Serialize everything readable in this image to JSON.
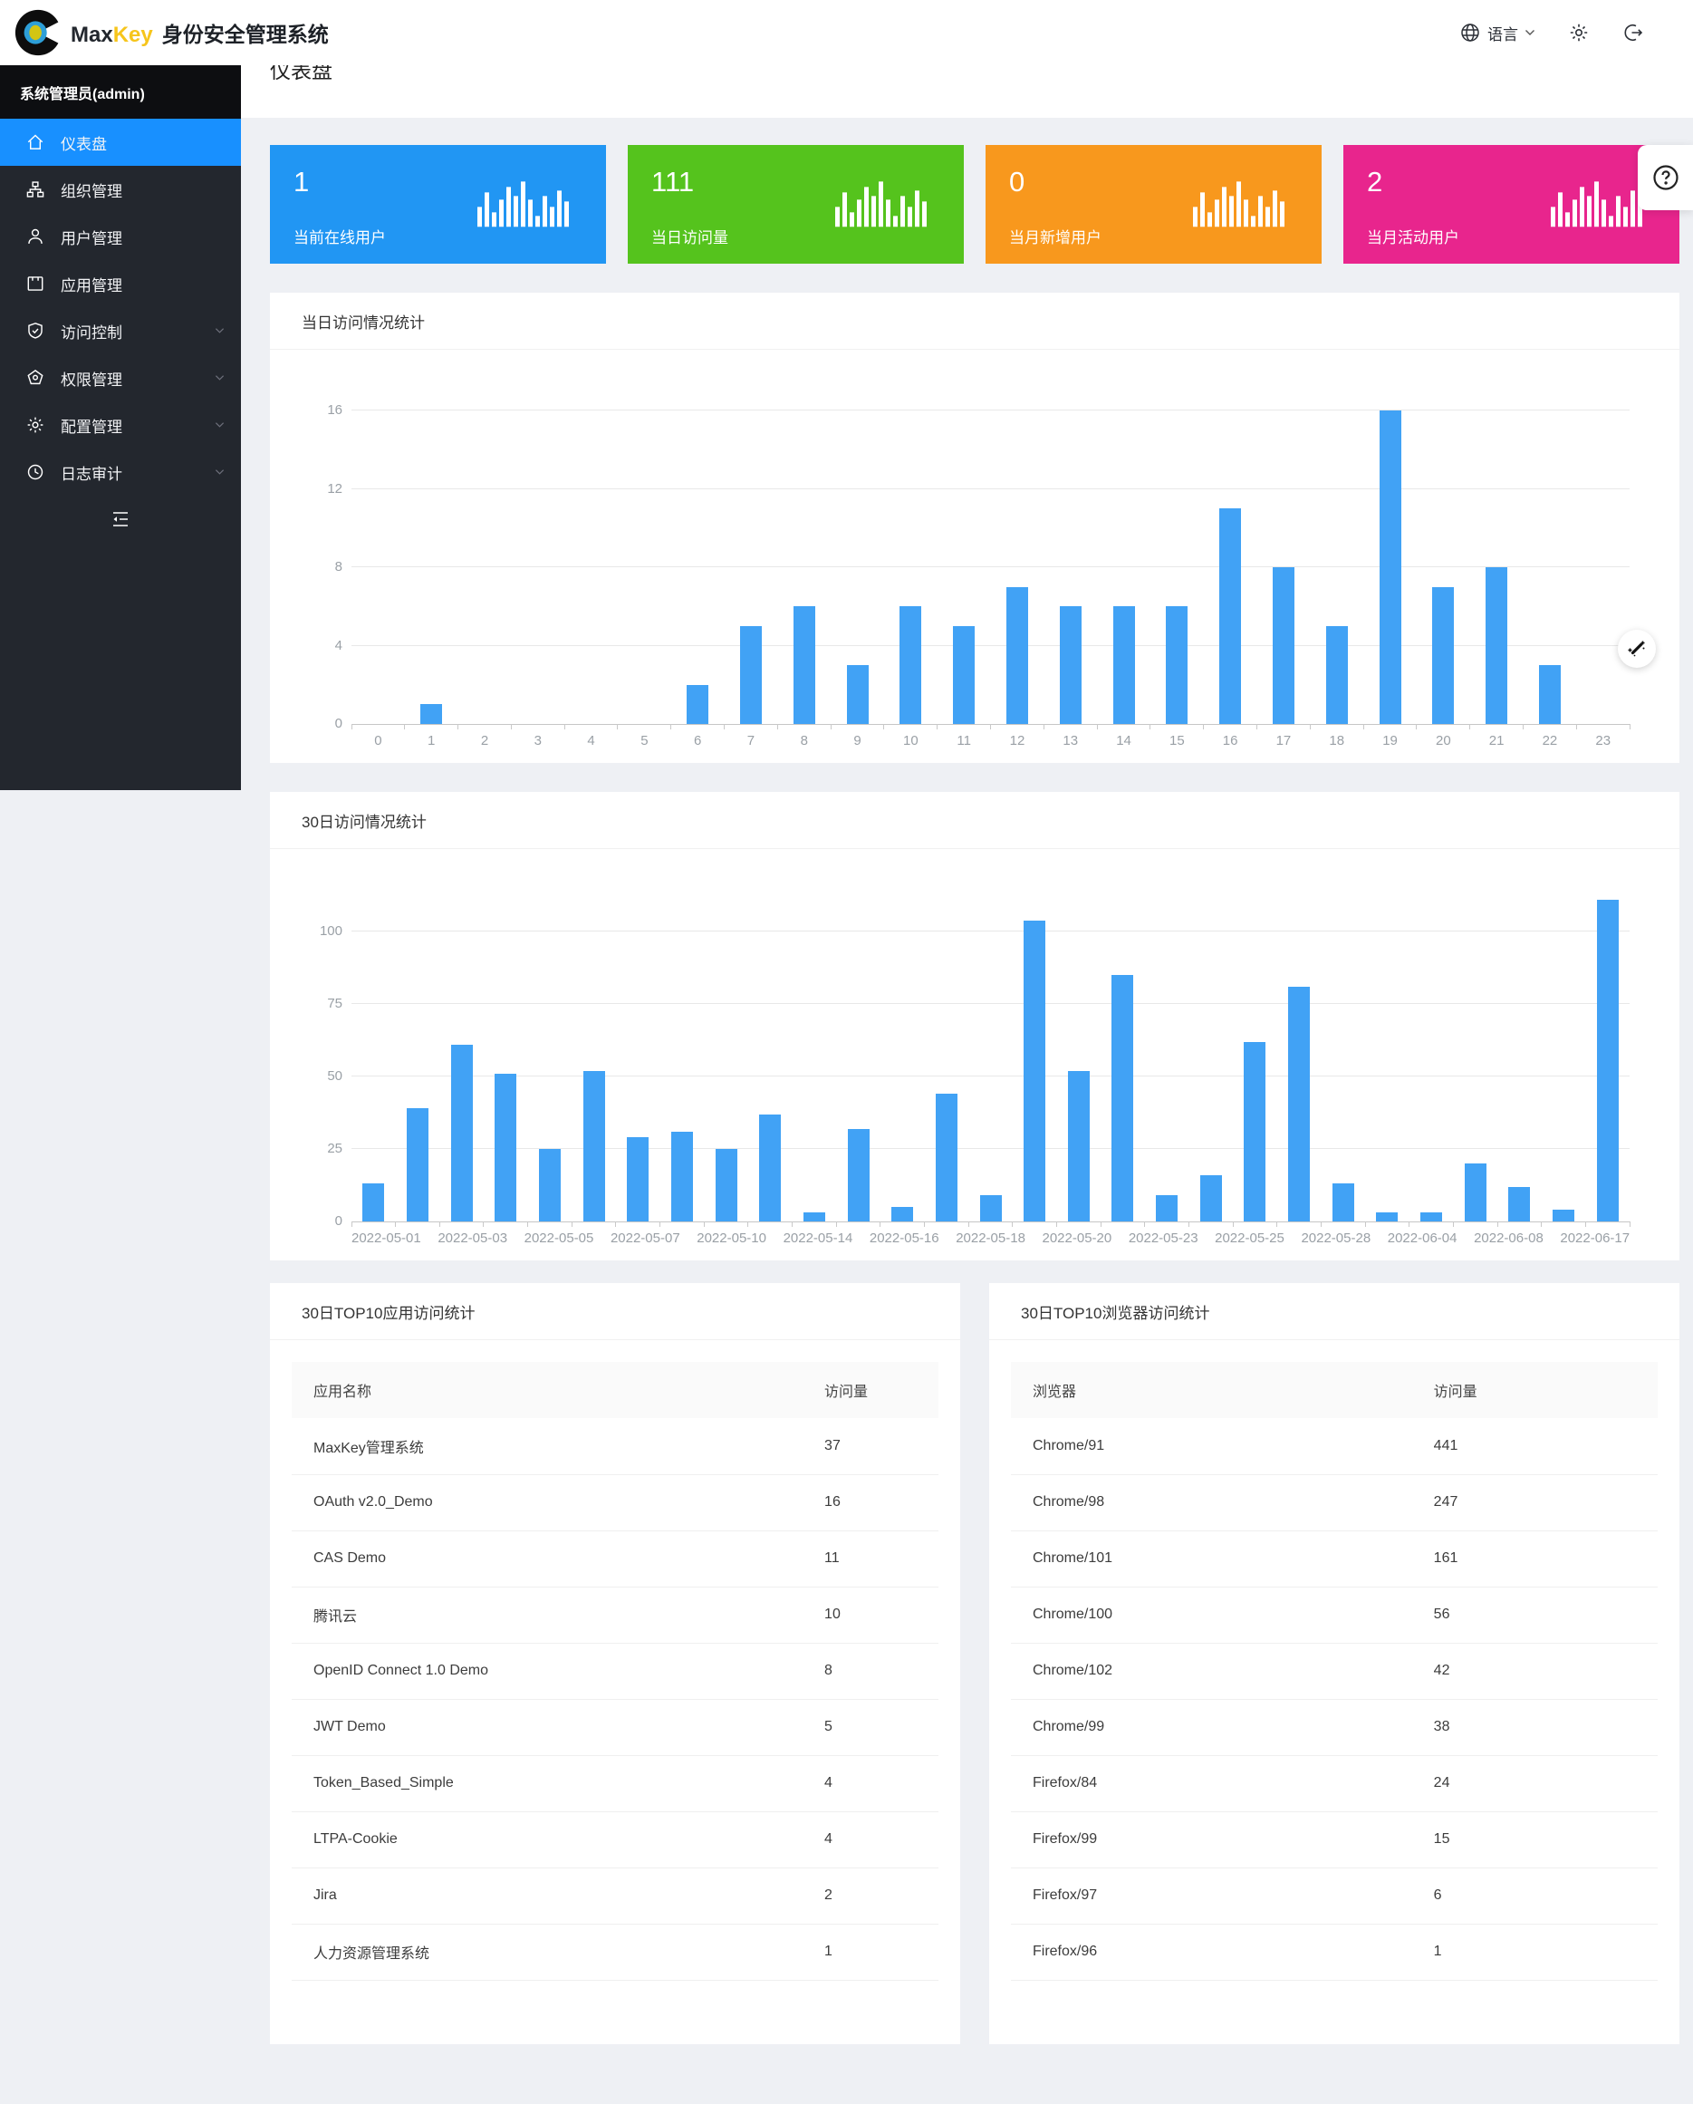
{
  "topbar": {
    "brand": {
      "max": "Max",
      "key": "Key",
      "suffix": "身份安全管理系统"
    },
    "language_label": "语言"
  },
  "sidebar": {
    "user_title": "系统管理员(admin)",
    "items": [
      {
        "label": "仪表盘"
      },
      {
        "label": "组织管理"
      },
      {
        "label": "用户管理"
      },
      {
        "label": "应用管理"
      },
      {
        "label": "访问控制"
      },
      {
        "label": "权限管理"
      },
      {
        "label": "配置管理"
      },
      {
        "label": "日志审计"
      }
    ]
  },
  "breadcrumb": {
    "home": "home",
    "separator": "/",
    "current": "仪表盘"
  },
  "page": {
    "title": "仪表盘"
  },
  "stat_cards": [
    {
      "value": "1",
      "label": "当前在线用户",
      "color": "#2196f3"
    },
    {
      "value": "111",
      "label": "当日访问量",
      "color": "#55c31d"
    },
    {
      "value": "0",
      "label": "当月新增用户",
      "color": "#f8981d"
    },
    {
      "value": "2",
      "label": "当月活动用户",
      "color": "#e8258d"
    }
  ],
  "chart_data": [
    {
      "type": "bar",
      "title": "当日访问情况统计",
      "categories": [
        "0",
        "1",
        "2",
        "3",
        "4",
        "5",
        "6",
        "7",
        "8",
        "9",
        "10",
        "11",
        "12",
        "13",
        "14",
        "15",
        "16",
        "17",
        "18",
        "19",
        "20",
        "21",
        "22",
        "23"
      ],
      "values": [
        0,
        1,
        0,
        0,
        0,
        0,
        2,
        5,
        6,
        3,
        6,
        5,
        7,
        6,
        6,
        6,
        11,
        8,
        5,
        16,
        7,
        8,
        3,
        0
      ],
      "xlabel": "",
      "ylabel": "",
      "yticks": [
        0,
        4,
        8,
        12,
        16
      ],
      "ylim": [
        0,
        18
      ],
      "grid": true,
      "legend": "none",
      "bar_color": "#41a2f5"
    },
    {
      "type": "bar",
      "title": "30日访问情况统计",
      "categories": [
        "2022-05-01",
        "",
        "2022-05-03",
        "",
        "2022-05-05",
        "",
        "2022-05-07",
        "",
        "2022-05-10",
        "",
        "2022-05-14",
        "",
        "2022-05-16",
        "",
        "2022-05-18",
        "",
        "2022-05-20",
        "",
        "2022-05-23",
        "",
        "2022-05-25",
        "",
        "2022-05-28",
        "",
        "2022-06-04",
        "",
        "2022-06-08",
        "",
        "2022-06-17"
      ],
      "values": [
        13,
        39,
        61,
        51,
        25,
        52,
        29,
        31,
        25,
        37,
        3,
        32,
        5,
        44,
        9,
        104,
        52,
        85,
        9,
        16,
        62,
        81,
        13,
        3,
        3,
        20,
        12,
        4,
        111
      ],
      "xlabel": "",
      "ylabel": "",
      "yticks": [
        0,
        25,
        50,
        75,
        100
      ],
      "ylim": [
        0,
        117
      ],
      "grid": true,
      "legend": "none",
      "bar_color": "#41a2f5"
    }
  ],
  "tables": [
    {
      "title": "30日TOP10应用访问统计",
      "headers": [
        "应用名称",
        "访问量"
      ],
      "rows": [
        [
          "MaxKey管理系统",
          "37"
        ],
        [
          "OAuth v2.0_Demo",
          "16"
        ],
        [
          "CAS Demo",
          "11"
        ],
        [
          "腾讯云",
          "10"
        ],
        [
          "OpenID Connect 1.0 Demo",
          "8"
        ],
        [
          "JWT Demo",
          "5"
        ],
        [
          "Token_Based_Simple",
          "4"
        ],
        [
          "LTPA-Cookie",
          "4"
        ],
        [
          "Jira",
          "2"
        ],
        [
          "人力资源管理系统",
          "1"
        ]
      ]
    },
    {
      "title": "30日TOP10浏览器访问统计",
      "headers": [
        "浏览器",
        "访问量"
      ],
      "rows": [
        [
          "Chrome/91",
          "441"
        ],
        [
          "Chrome/98",
          "247"
        ],
        [
          "Chrome/101",
          "161"
        ],
        [
          "Chrome/100",
          "56"
        ],
        [
          "Chrome/102",
          "42"
        ],
        [
          "Chrome/99",
          "38"
        ],
        [
          "Firefox/84",
          "24"
        ],
        [
          "Firefox/99",
          "15"
        ],
        [
          "Firefox/97",
          "6"
        ],
        [
          "Firefox/96",
          "1"
        ]
      ]
    }
  ]
}
